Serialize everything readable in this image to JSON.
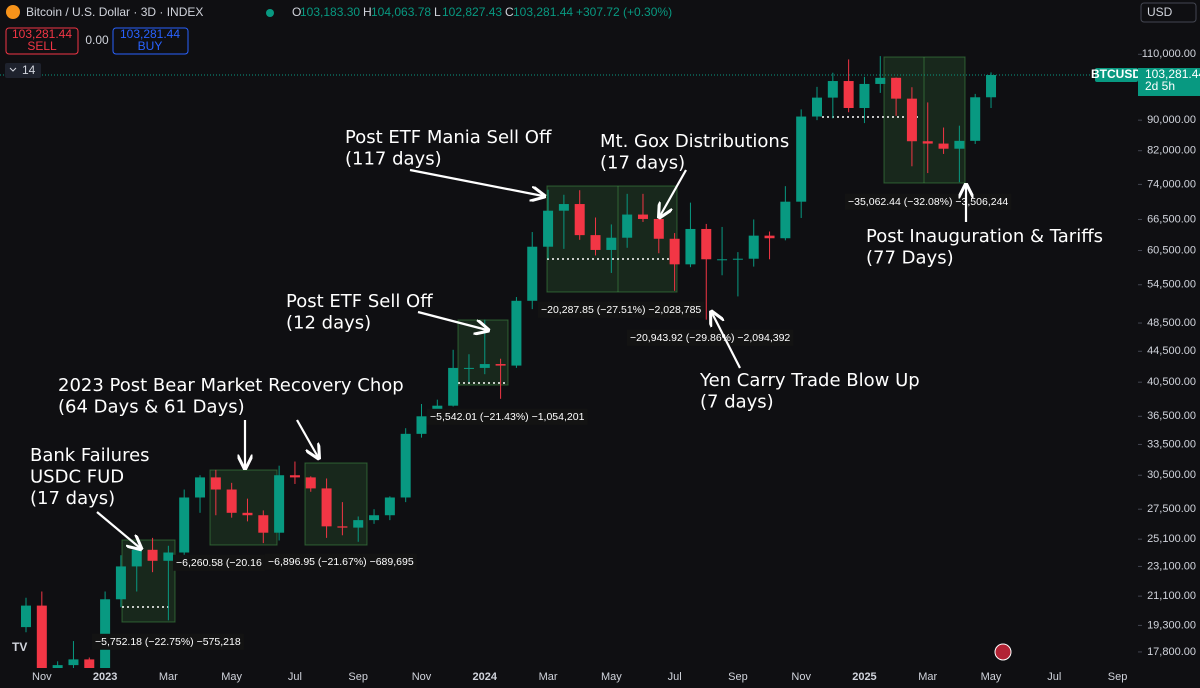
{
  "header": {
    "symbol": "Bitcoin / U.S. Dollar · 3D · INDEX",
    "ohlc": [
      {
        "key": "O",
        "value": "103,183.30"
      },
      {
        "key": "H",
        "value": "104,063.78"
      },
      {
        "key": "L",
        "value": "102,827.43"
      },
      {
        "key": "C",
        "value": "103,281.44"
      }
    ],
    "change": "+307.72 (+0.30%)",
    "currency": "USD",
    "indicator": "14"
  },
  "trade_panel": {
    "sell_price": "103,281.44",
    "sell": "SELL",
    "spread": "0.00",
    "buy_price": "103,281.44",
    "buy": "BUY"
  },
  "chart_data": {
    "type": "candlestick",
    "log_scale": true,
    "grid": false,
    "up_color": "#089981",
    "down_color": "#f23645",
    "categories": [
      null,
      "Nov",
      null,
      null,
      null,
      "2023",
      null,
      null,
      null,
      "Mar",
      null,
      null,
      null,
      "May",
      null,
      null,
      null,
      "Jul",
      null,
      null,
      null,
      "Sep",
      null,
      null,
      null,
      "Nov",
      null,
      null,
      null,
      "2024",
      null,
      null,
      null,
      "Mar",
      null,
      null,
      null,
      "May",
      null,
      null,
      null,
      "Jul",
      null,
      null,
      null,
      "Sep",
      null,
      null,
      null,
      "Nov",
      null,
      null,
      null,
      "2025",
      null,
      null,
      null,
      "Mar",
      null,
      null,
      null,
      "May",
      null,
      null,
      null,
      "Jul",
      null,
      null,
      null,
      "Sep",
      null,
      null
    ],
    "open": [
      19200,
      20500,
      16600,
      17100,
      17400,
      16600,
      20900,
      23100,
      24300,
      23500,
      24100,
      28500,
      30300,
      29200,
      27200,
      27000,
      25600,
      30500,
      30300,
      29300,
      26100,
      26000,
      26600,
      27000,
      28500,
      34600,
      36500,
      37700,
      42300,
      42300,
      42800,
      42600,
      51900,
      61200,
      68300,
      69700,
      63400,
      60600,
      62900,
      67500,
      66600,
      62700,
      58000,
      64600,
      58900,
      58900,
      59000,
      63300,
      62800,
      70200,
      91000,
      96400,
      101400,
      93400,
      100500,
      102400,
      96100,
      84400,
      83800,
      82500,
      84500,
      96500,
      null,
      null,
      null,
      null,
      null,
      null,
      null,
      null,
      null,
      null
    ],
    "high": [
      21000,
      21400,
      17300,
      18400,
      17500,
      21400,
      23900,
      24400,
      25200,
      24600,
      29200,
      30500,
      31000,
      29800,
      28400,
      27400,
      31400,
      31800,
      30400,
      30200,
      28100,
      26900,
      27500,
      28600,
      35200,
      37900,
      38400,
      44700,
      44100,
      49000,
      43500,
      52500,
      64000,
      72800,
      71700,
      72700,
      66900,
      65500,
      71900,
      71900,
      67200,
      63800,
      70000,
      65600,
      65000,
      60200,
      66500,
      64100,
      73600,
      93000,
      99600,
      104000,
      108300,
      102700,
      109400,
      102500,
      99500,
      95000,
      88000,
      88500,
      97500,
      104100,
      null,
      null,
      null,
      null,
      null,
      null,
      null,
      null,
      null,
      null
    ],
    "low": [
      18900,
      15700,
      15900,
      16700,
      16400,
      16500,
      20400,
      21400,
      22700,
      19600,
      23900,
      27200,
      27000,
      26800,
      26500,
      24800,
      25000,
      29700,
      29000,
      25200,
      25400,
      24900,
      26300,
      26600,
      28100,
      34200,
      35600,
      37600,
      40500,
      41500,
      38500,
      42300,
      50600,
      59000,
      60800,
      62500,
      59600,
      56500,
      61000,
      66000,
      60000,
      53500,
      57500,
      49000,
      56100,
      52600,
      57600,
      58900,
      62400,
      66800,
      90000,
      90500,
      92200,
      89200,
      97800,
      91200,
      78200,
      76600,
      81200,
      74500,
      83700,
      93400,
      null,
      null,
      null,
      null,
      null,
      null,
      null,
      null,
      null,
      null
    ],
    "close": [
      20500,
      16600,
      17100,
      17400,
      16600,
      20900,
      23100,
      24300,
      23500,
      24100,
      28500,
      30300,
      29200,
      27200,
      27000,
      25600,
      30500,
      30300,
      29300,
      26100,
      26000,
      26600,
      27000,
      28500,
      34600,
      36500,
      37700,
      42300,
      42300,
      42800,
      42600,
      51900,
      61200,
      68300,
      69700,
      63400,
      60600,
      62900,
      67500,
      66600,
      62700,
      58000,
      64600,
      58900,
      58900,
      59000,
      63300,
      62800,
      70200,
      91000,
      96400,
      101400,
      93400,
      100500,
      102400,
      96100,
      84400,
      83800,
      82500,
      84500,
      96500,
      103281.44,
      null,
      null,
      null,
      null,
      null,
      null,
      null,
      null,
      null,
      null
    ],
    "ylim": [
      16950,
      129800
    ],
    "yticks": [
      {
        "value": 110000,
        "label": "110,000.00"
      },
      {
        "value": 90000,
        "label": "90,000.00"
      },
      {
        "value": 82000,
        "label": "82,000.00"
      },
      {
        "value": 74000,
        "label": "74,000.00"
      },
      {
        "value": 66500,
        "label": "66,500.00"
      },
      {
        "value": 60500,
        "label": "60,500.00"
      },
      {
        "value": 54500,
        "label": "54,500.00"
      },
      {
        "value": 48500,
        "label": "48,500.00"
      },
      {
        "value": 44500,
        "label": "44,500.00"
      },
      {
        "value": 40500,
        "label": "40,500.00"
      },
      {
        "value": 36500,
        "label": "36,500.00"
      },
      {
        "value": 33500,
        "label": "33,500.00"
      },
      {
        "value": 30500,
        "label": "30,500.00"
      },
      {
        "value": 27500,
        "label": "27,500.00"
      },
      {
        "value": 25100,
        "label": "25,100.00"
      },
      {
        "value": 23100,
        "label": "23,100.00"
      },
      {
        "value": 21100,
        "label": "21,100.00"
      },
      {
        "value": 19300,
        "label": "19,300.00"
      },
      {
        "value": 17800,
        "label": "17,800.00"
      }
    ],
    "last_price": 103281.44,
    "last_price_label": "103,281.44",
    "last_price_symbol": "BTCUSD",
    "last_price_countdown": "2d 5h",
    "annotations": [
      {
        "lines": [
          "Post ETF Mania Sell Off",
          "(117 days)"
        ]
      },
      {
        "lines": [
          "Mt. Gox Distributions",
          "(17 days)"
        ]
      },
      {
        "lines": [
          "Post ETF Sell Off",
          "(12 days)"
        ]
      },
      {
        "lines": [
          "2023 Post Bear Market Recovery Chop",
          "(64 Days & 61 Days)"
        ]
      },
      {
        "lines": [
          "Bank Failures",
          "USDC FUD",
          "(17 days)"
        ]
      },
      {
        "lines": [
          "Yen Carry Trade Blow Up",
          "(7 days)"
        ]
      },
      {
        "lines": [
          "Post Inauguration & Tariffs",
          "(77 Days)"
        ]
      }
    ],
    "measurements": [
      "−5,752.18 (−22.75%) −575,218",
      "−6,260.58 (−20.16",
      "−6,896.95 (−21.67%) −689,695",
      "−5,542.01 (−21.43%) −1,054,201",
      "−20,287.85 (−27.51%) −2,028,785",
      "−20,943.92 (−29.86%) −2,094,392",
      "−35,062.44 (−32.08%) −3,506,244"
    ]
  }
}
